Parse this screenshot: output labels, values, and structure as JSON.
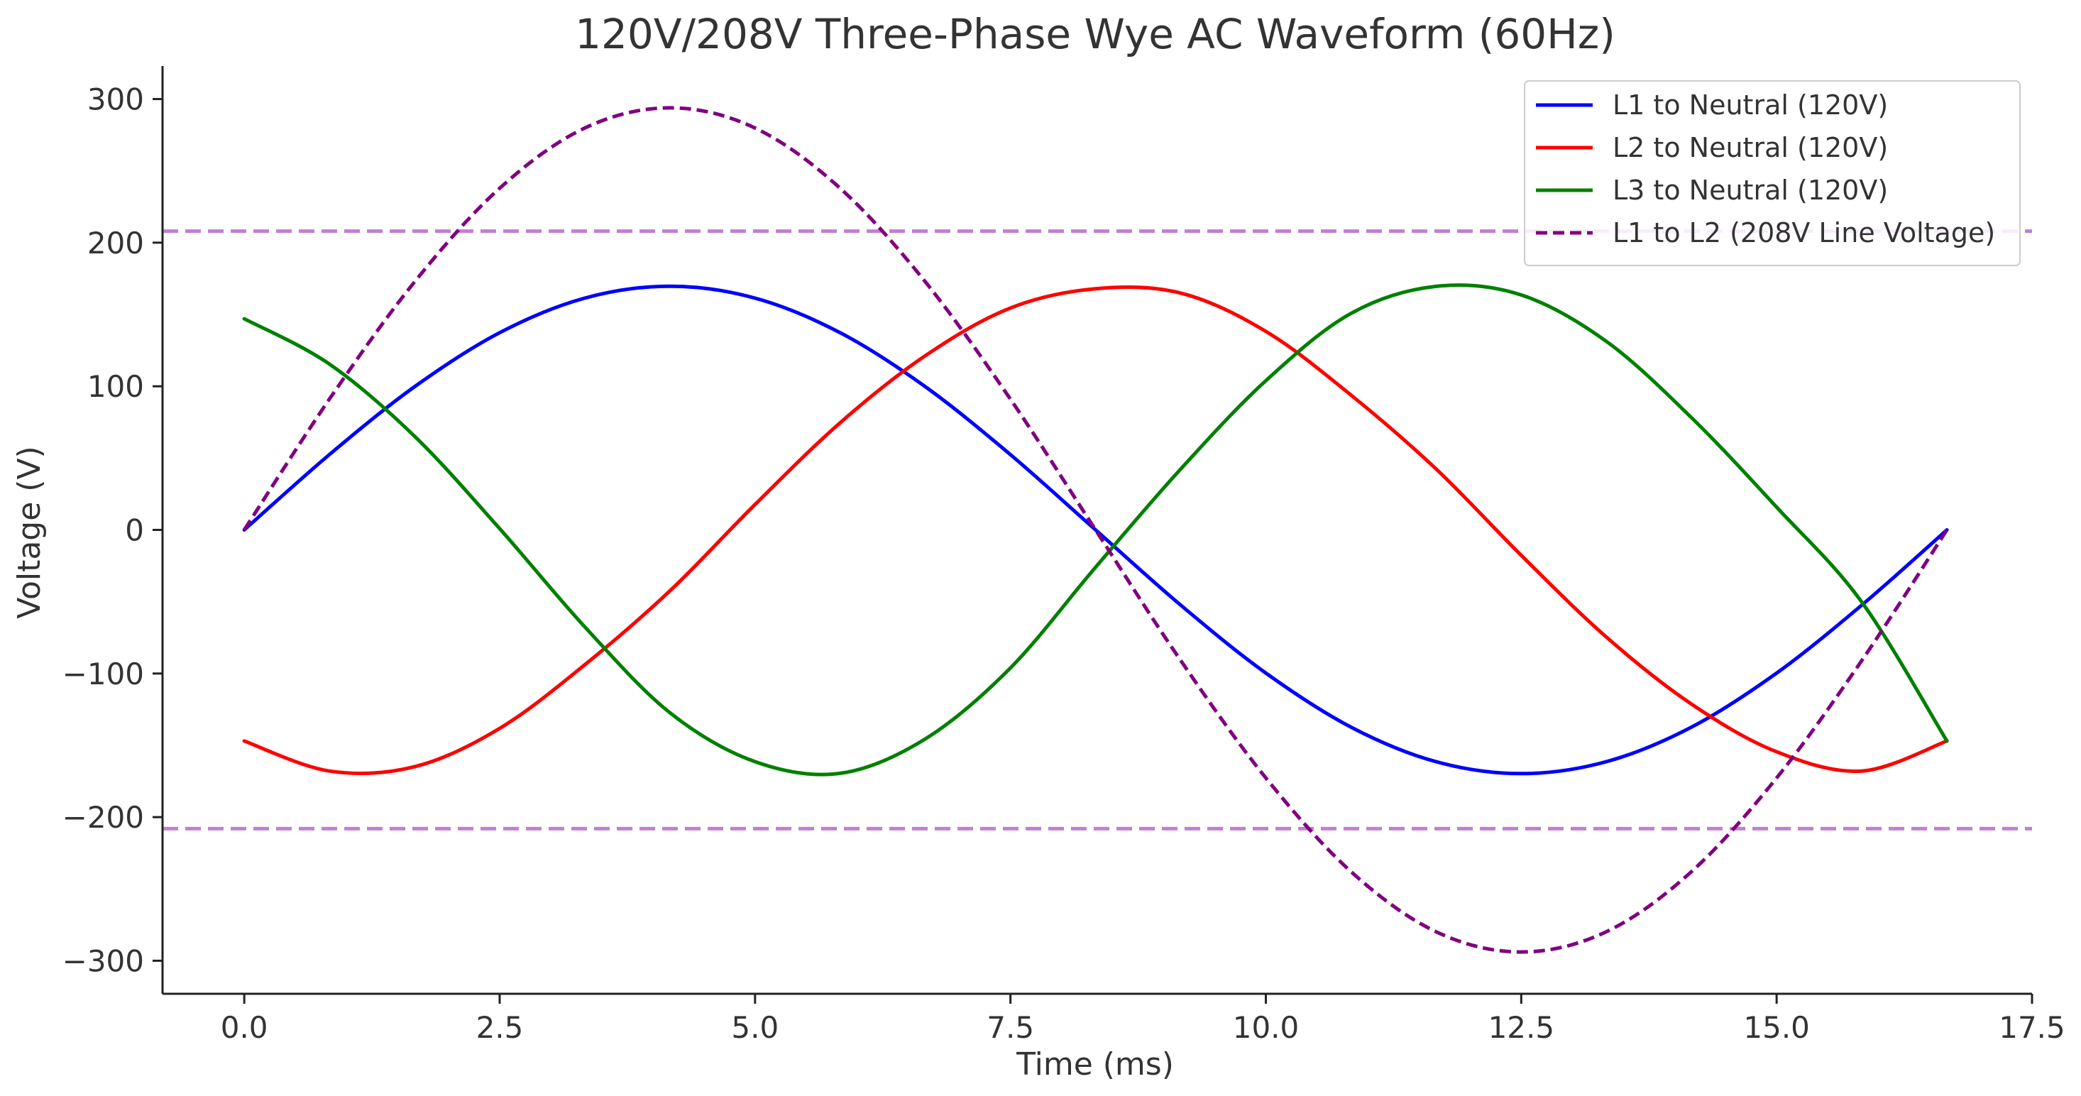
{
  "chart_data": {
    "type": "line",
    "title": "120V/208V Three-Phase Wye AC Waveform (60Hz)",
    "xlabel": "Time (ms)",
    "ylabel": "Voltage (V)",
    "xlim": [
      -0.8,
      17.5
    ],
    "ylim": [
      -323,
      323
    ],
    "x_ticks": [
      0.0,
      2.5,
      5.0,
      7.5,
      10.0,
      12.5,
      15.0,
      17.5
    ],
    "x_tick_labels": [
      "0.0",
      "2.5",
      "5.0",
      "7.5",
      "10.0",
      "12.5",
      "15.0",
      "17.5"
    ],
    "y_ticks": [
      300,
      200,
      100,
      0,
      -100,
      -200,
      -300
    ],
    "y_tick_labels": [
      "300",
      "200",
      "100",
      "0",
      "−100",
      "−200",
      "−300"
    ],
    "grid": false,
    "legend_position": "top-right",
    "x": [
      0.0,
      0.833,
      1.667,
      2.5,
      3.333,
      4.167,
      5.0,
      5.833,
      6.667,
      7.5,
      8.333,
      9.167,
      10.0,
      10.833,
      11.667,
      12.5,
      13.333,
      14.167,
      15.0,
      15.833,
      16.667
    ],
    "series": [
      {
        "name": "L1 to Neutral (120V)",
        "color": "#0000ff",
        "style": "solid",
        "values": [
          0.0,
          52.4,
          99.7,
          137.3,
          161.4,
          169.7,
          161.4,
          137.3,
          99.7,
          52.4,
          0.0,
          -52.4,
          -99.7,
          -137.3,
          -161.4,
          -169.7,
          -161.4,
          -137.3,
          -99.7,
          -52.4,
          0.0
        ]
      },
      {
        "name": "L2 to Neutral (120V)",
        "color": "#ff0000",
        "style": "solid",
        "values": [
          -147.0,
          -167.9,
          -164.9,
          -138.2,
          -93.9,
          -42.4,
          17.7,
          74.6,
          121.3,
          154.5,
          167.9,
          164.9,
          138.2,
          93.9,
          42.4,
          -17.7,
          -74.6,
          -121.3,
          -154.5,
          -167.9,
          -147.0
        ]
      },
      {
        "name": "L3 to Neutral (120V)",
        "color": "#008000",
        "style": "solid",
        "values": [
          147.0,
          115.5,
          65.2,
          0.9,
          -67.5,
          -127.3,
          -161.4,
          -169.5,
          -145.5,
          -96.1,
          -26.0,
          42.4,
          103.9,
          150.7,
          169.6,
          163.6,
          131.3,
          78.1,
          15.8,
          -50.2,
          -147.0
        ]
      },
      {
        "name": "L1 to L2 (208V Line Voltage)",
        "color": "#800080",
        "style": "dashed",
        "values": [
          0.0,
          91.0,
          172.7,
          237.9,
          279.8,
          293.9,
          279.8,
          237.9,
          172.7,
          91.0,
          0.0,
          -91.0,
          -172.7,
          -237.9,
          -279.8,
          -293.9,
          -279.8,
          -237.9,
          -172.7,
          -91.0,
          0.0
        ]
      }
    ],
    "reference_lines": [
      {
        "y": 208,
        "color": "#c080d0",
        "style": "dashed"
      },
      {
        "y": -208,
        "color": "#c080d0",
        "style": "dashed"
      }
    ]
  }
}
